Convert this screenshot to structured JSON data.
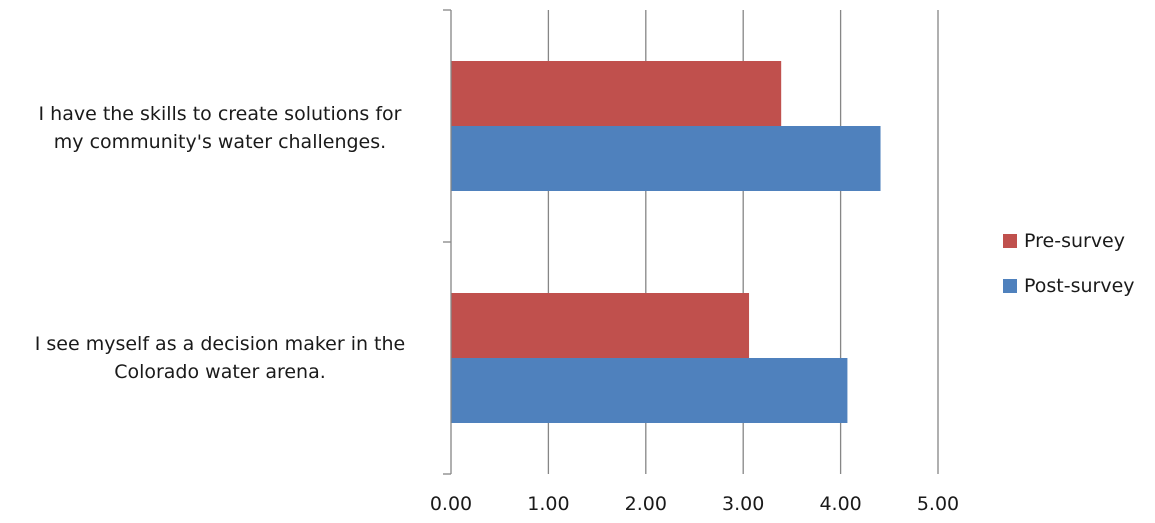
{
  "chart_data": {
    "type": "bar",
    "orientation": "horizontal",
    "categories": [
      {
        "lines": [
          "I have the skills to create solutions for",
          "my community's water challenges."
        ]
      },
      {
        "lines": [
          "I see myself as a decision maker in the",
          "Colorado water arena."
        ]
      }
    ],
    "series": [
      {
        "name": "Pre-survey",
        "color": "#c0504d",
        "values": [
          3.39,
          3.06
        ]
      },
      {
        "name": "Post-survey",
        "color": "#4f81bd",
        "values": [
          4.41,
          4.07
        ]
      }
    ],
    "xlim": [
      0,
      5
    ],
    "x_ticks": [
      "0.00",
      "1.00",
      "2.00",
      "3.00",
      "4.00",
      "5.00"
    ],
    "grid": true,
    "legend": "right"
  }
}
